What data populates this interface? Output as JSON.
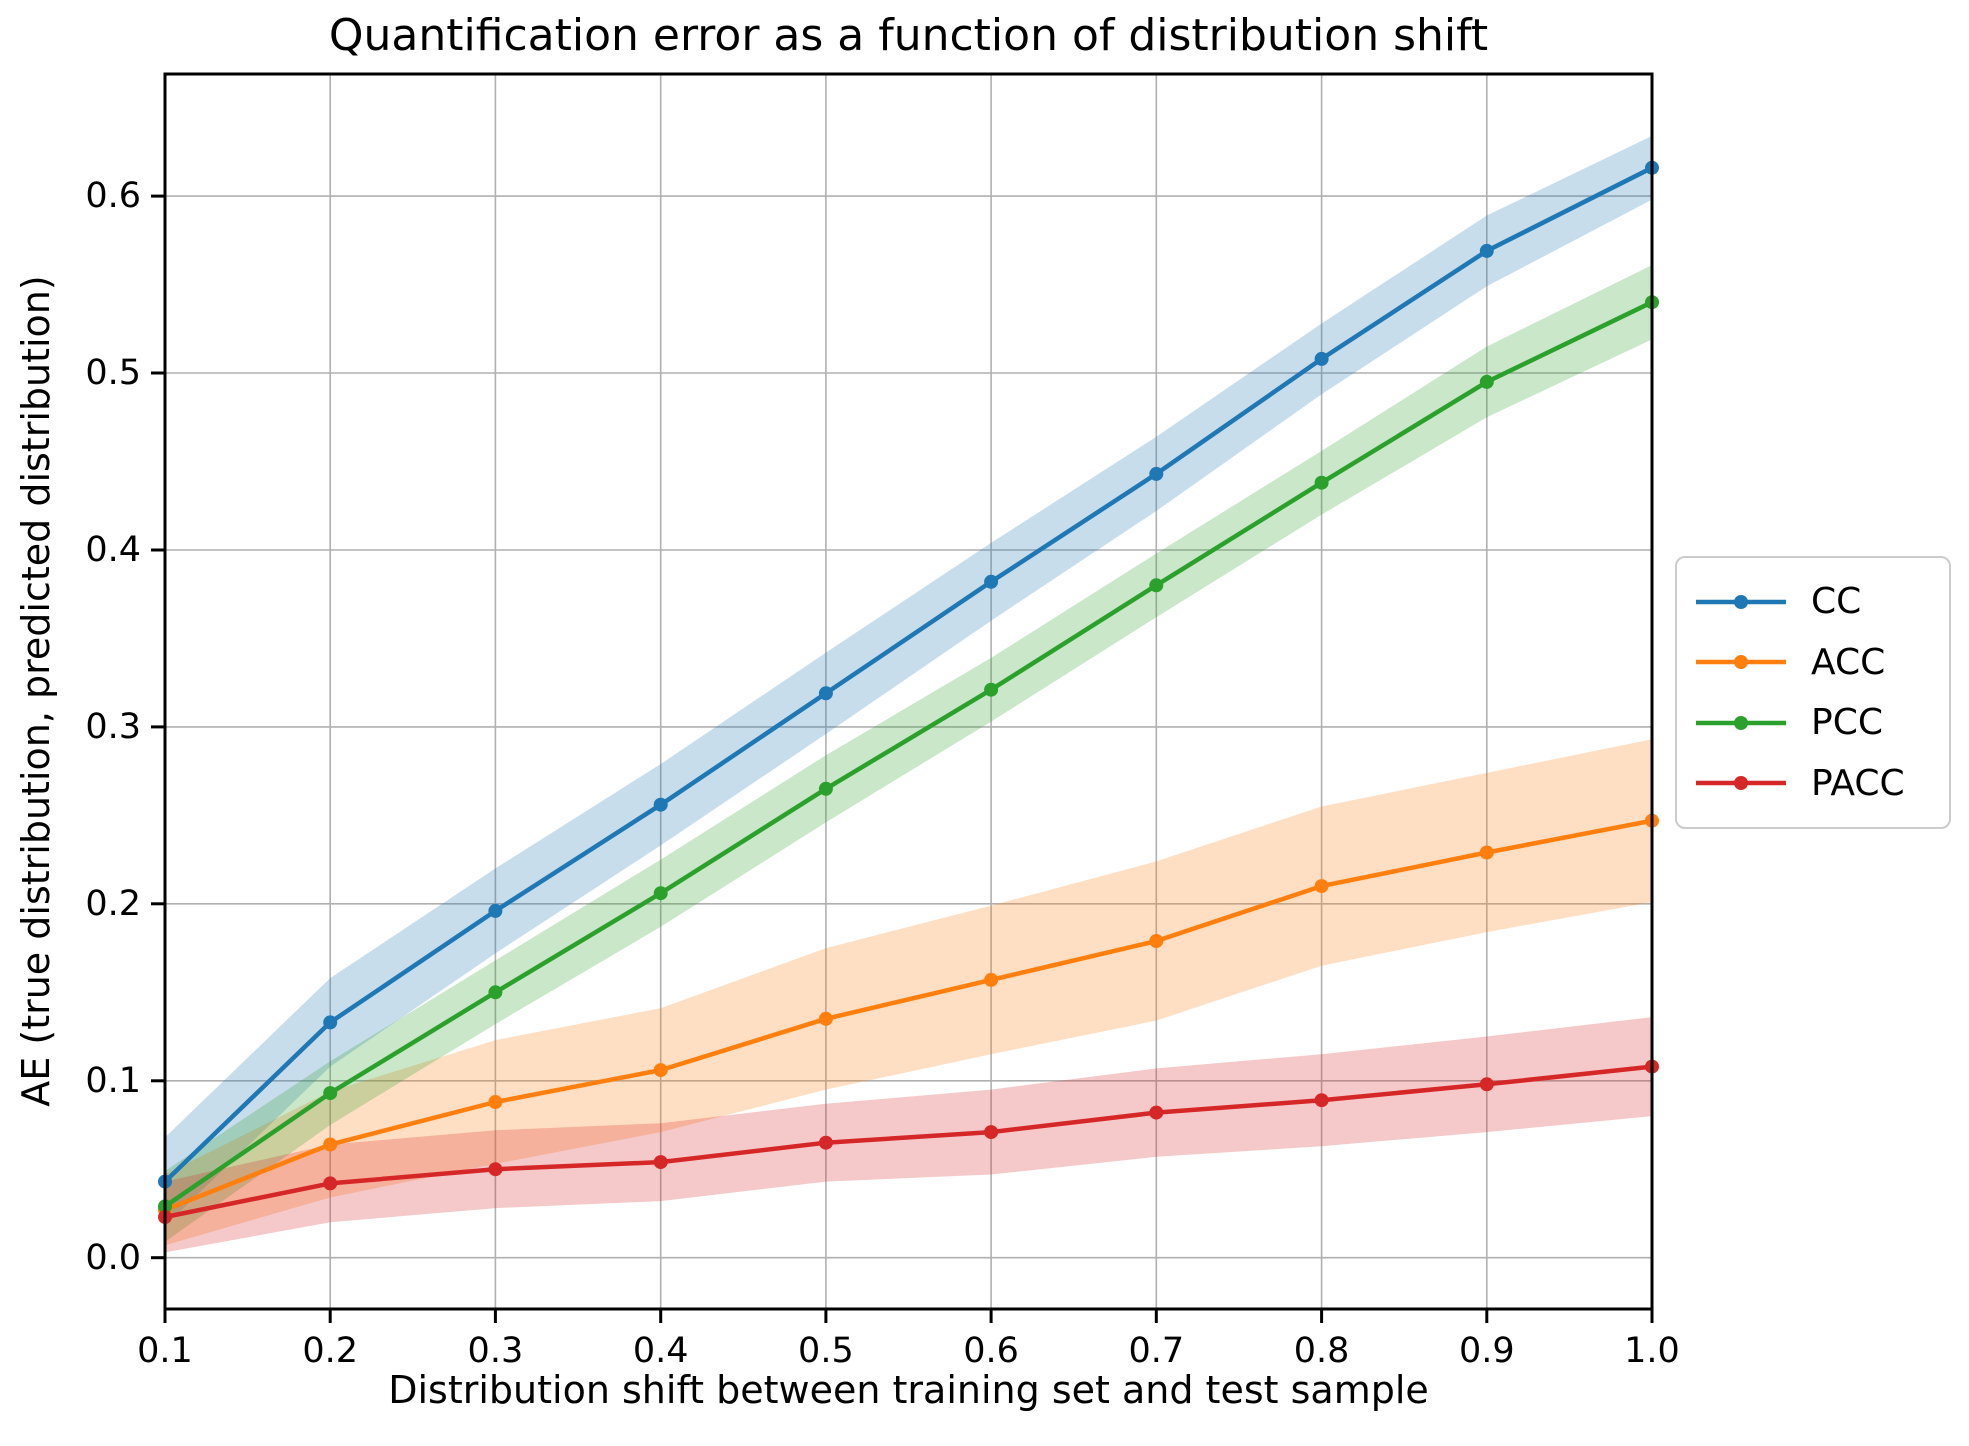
{
  "chart_data": {
    "type": "line",
    "title": "Quantification error as a function of distribution shift",
    "xlabel": "Distribution shift between training set and test sample",
    "ylabel": "AE (true distribution, predicted distribution)",
    "x": [
      0.1,
      0.2,
      0.3,
      0.4,
      0.5,
      0.6,
      0.7,
      0.8,
      0.9,
      1.0
    ],
    "x_ticklabels": [
      "0.1",
      "0.2",
      "0.3",
      "0.4",
      "0.5",
      "0.6",
      "0.7",
      "0.8",
      "0.9",
      "1.0"
    ],
    "y_ticks": [
      0.0,
      0.1,
      0.2,
      0.3,
      0.4,
      0.5,
      0.6
    ],
    "y_ticklabels": [
      "0.0",
      "0.1",
      "0.2",
      "0.3",
      "0.4",
      "0.5",
      "0.6"
    ],
    "xlim": [
      0.1,
      1.0
    ],
    "ylim": [
      -0.029,
      0.669
    ],
    "grid": true,
    "grid_color": "#b0b0b0",
    "legend_position": "right-outside",
    "band_alpha": 0.25,
    "series": [
      {
        "name": "CC",
        "color": "#1f77b4",
        "values": [
          0.043,
          0.133,
          0.196,
          0.256,
          0.319,
          0.382,
          0.443,
          0.508,
          0.569,
          0.616
        ],
        "band_lo": [
          0.018,
          0.108,
          0.172,
          0.233,
          0.296,
          0.36,
          0.422,
          0.488,
          0.549,
          0.598
        ],
        "band_hi": [
          0.068,
          0.158,
          0.22,
          0.279,
          0.342,
          0.404,
          0.464,
          0.528,
          0.589,
          0.634
        ]
      },
      {
        "name": "ACC",
        "color": "#ff7f0e",
        "values": [
          0.027,
          0.064,
          0.088,
          0.106,
          0.135,
          0.157,
          0.179,
          0.21,
          0.229,
          0.247
        ],
        "band_lo": [
          0.007,
          0.034,
          0.053,
          0.071,
          0.095,
          0.115,
          0.134,
          0.165,
          0.184,
          0.201
        ],
        "band_hi": [
          0.047,
          0.094,
          0.123,
          0.141,
          0.175,
          0.199,
          0.224,
          0.255,
          0.274,
          0.293
        ]
      },
      {
        "name": "PCC",
        "color": "#2ca02c",
        "values": [
          0.029,
          0.093,
          0.15,
          0.206,
          0.265,
          0.321,
          0.38,
          0.438,
          0.495,
          0.54
        ],
        "band_lo": [
          0.009,
          0.075,
          0.132,
          0.187,
          0.246,
          0.303,
          0.362,
          0.42,
          0.475,
          0.519
        ],
        "band_hi": [
          0.049,
          0.111,
          0.168,
          0.225,
          0.284,
          0.339,
          0.398,
          0.456,
          0.515,
          0.561
        ]
      },
      {
        "name": "PACC",
        "color": "#d62728",
        "values": [
          0.023,
          0.042,
          0.05,
          0.054,
          0.065,
          0.071,
          0.082,
          0.089,
          0.098,
          0.108
        ],
        "band_lo": [
          0.003,
          0.02,
          0.028,
          0.032,
          0.043,
          0.047,
          0.057,
          0.063,
          0.071,
          0.08
        ],
        "band_hi": [
          0.043,
          0.064,
          0.072,
          0.076,
          0.087,
          0.095,
          0.107,
          0.115,
          0.125,
          0.136
        ]
      }
    ]
  }
}
